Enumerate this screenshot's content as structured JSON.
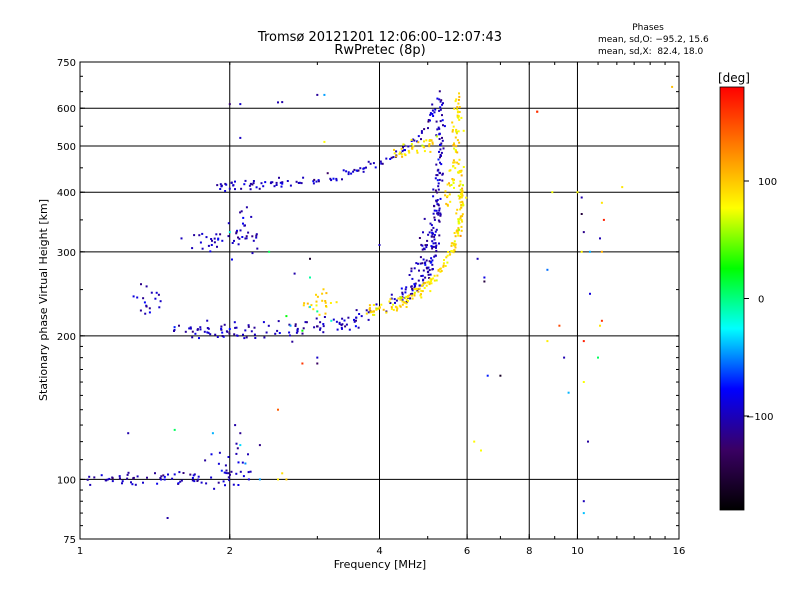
{
  "chart_data": {
    "type": "scatter",
    "title": "Tromsø 20121201 12:06:00–12:07:43",
    "subtitle": "RwPretec (8p)",
    "xlabel": "Frequency [MHz]",
    "ylabel": "Stationary phase Virtual Height [km]",
    "x_scale": "log",
    "y_scale": "log",
    "xlim": [
      1,
      16
    ],
    "ylim": [
      75,
      750
    ],
    "x_ticks": [
      1,
      2,
      4,
      6,
      8,
      10,
      16
    ],
    "y_ticks": [
      75,
      100,
      200,
      300,
      400,
      500,
      600,
      750
    ],
    "grid_x": [
      2,
      4,
      6,
      8,
      10
    ],
    "grid_y": [
      100,
      200,
      300,
      400,
      500,
      600
    ],
    "phase_stats": {
      "title": "Phases",
      "line_o": "mean, sd,O: −95.2, 15.6",
      "line_x": "mean, sd,X:  82.4, 18.0"
    },
    "colorbar": {
      "label": "[deg]",
      "range": [
        -180,
        180
      ],
      "ticks": [
        100,
        0,
        -100
      ],
      "colors": [
        "#ff0000",
        "#ff8000",
        "#ffff00",
        "#00ff00",
        "#00ffff",
        "#0000ff",
        "#3a0064",
        "#000000"
      ]
    },
    "series": [
      {
        "phase": -100,
        "traces": [
          {
            "kind": "curve",
            "points": [
              [
                1.0,
                100
              ],
              [
                1.3,
                100
              ],
              [
                1.6,
                101
              ],
              [
                1.8,
                100
              ],
              [
                2.0,
                100
              ],
              [
                2.2,
                101
              ]
            ],
            "n": 70,
            "spread": 0.018
          },
          {
            "kind": "curve",
            "points": [
              [
                1.55,
                205
              ],
              [
                1.8,
                205
              ],
              [
                2.1,
                203
              ],
              [
                2.5,
                205
              ],
              [
                3.0,
                210
              ],
              [
                3.5,
                215
              ],
              [
                4.0,
                228
              ],
              [
                4.5,
                242
              ],
              [
                4.9,
                262
              ],
              [
                5.1,
                290
              ],
              [
                5.2,
                330
              ],
              [
                5.25,
                400
              ],
              [
                5.3,
                500
              ],
              [
                5.3,
                580
              ],
              [
                5.3,
                640
              ]
            ],
            "n": 260,
            "spread": 0.02
          },
          {
            "kind": "curve",
            "points": [
              [
                1.9,
                410
              ],
              [
                2.3,
                414
              ],
              [
                2.8,
                420
              ],
              [
                3.3,
                432
              ],
              [
                3.9,
                458
              ],
              [
                4.4,
                485
              ],
              [
                4.8,
                525
              ],
              [
                5.1,
                580
              ],
              [
                5.25,
                630
              ]
            ],
            "n": 120,
            "spread": 0.013
          },
          {
            "kind": "curve",
            "points": [
              [
                1.7,
                320
              ],
              [
                1.9,
                318
              ],
              [
                2.1,
                320
              ],
              [
                2.3,
                322
              ]
            ],
            "n": 40,
            "spread": 0.03
          },
          {
            "kind": "curve",
            "points": [
              [
                4.5,
                245
              ],
              [
                4.8,
                275
              ],
              [
                5.0,
                310
              ],
              [
                5.1,
                350
              ],
              [
                5.2,
                400
              ]
            ],
            "n": 60,
            "spread": 0.03
          },
          {
            "kind": "curve",
            "points": [
              [
                1.3,
                230
              ],
              [
                1.4,
                235
              ],
              [
                1.45,
                245
              ]
            ],
            "n": 18,
            "spread": 0.05
          },
          {
            "kind": "curve",
            "points": [
              [
                1.85,
                102
              ],
              [
                2.0,
                106
              ],
              [
                2.1,
                110
              ]
            ],
            "n": 20,
            "spread": 0.05
          },
          {
            "kind": "curve",
            "points": [
              [
                2.05,
                335
              ],
              [
                2.1,
                340
              ]
            ],
            "n": 12,
            "spread": 0.06
          },
          {
            "kind": "points",
            "points": [
              [
                2.0,
                612
              ],
              [
                2.1,
                612
              ],
              [
                2.5,
                617
              ],
              [
                2.55,
                618
              ],
              [
                3.0,
                640
              ],
              [
                2.1,
                520
              ],
              [
                1.6,
                320
              ],
              [
                1.25,
                125
              ],
              [
                1.5,
                83
              ],
              [
                2.05,
                130
              ],
              [
                2.1,
                125
              ],
              [
                2.3,
                118
              ],
              [
                6.3,
                290
              ],
              [
                6.5,
                265
              ],
              [
                10.2,
                390
              ],
              [
                10.3,
                330
              ],
              [
                11.1,
                320
              ],
              [
                10.6,
                245
              ],
              [
                9.4,
                180
              ],
              [
                10.3,
                90
              ],
              [
                3.0,
                180
              ],
              [
                2.7,
                270
              ],
              [
                4.0,
                310
              ],
              [
                10.5,
                120
              ],
              [
                6.6,
                165
              ]
            ]
          }
        ]
      },
      {
        "phase": 90,
        "traces": [
          {
            "kind": "curve",
            "points": [
              [
                3.8,
                225
              ],
              [
                4.2,
                231
              ],
              [
                4.6,
                240
              ],
              [
                5.0,
                255
              ],
              [
                5.3,
                275
              ],
              [
                5.6,
                300
              ],
              [
                5.8,
                340
              ],
              [
                5.85,
                400
              ],
              [
                5.8,
                450
              ]
            ],
            "n": 190,
            "spread": 0.016
          },
          {
            "kind": "curve",
            "points": [
              [
                5.4,
                380
              ],
              [
                5.6,
                420
              ],
              [
                5.7,
                500
              ],
              [
                5.75,
                560
              ],
              [
                5.8,
                630
              ]
            ],
            "n": 70,
            "spread": 0.02
          },
          {
            "kind": "curve",
            "points": [
              [
                4.3,
                480
              ],
              [
                4.7,
                495
              ],
              [
                5.0,
                505
              ],
              [
                5.2,
                520
              ]
            ],
            "n": 40,
            "spread": 0.02
          },
          {
            "kind": "curve",
            "points": [
              [
                2.8,
                235
              ],
              [
                3.0,
                238
              ],
              [
                3.3,
                232
              ]
            ],
            "n": 22,
            "spread": 0.03
          },
          {
            "kind": "points",
            "points": [
              [
                2.5,
                100
              ],
              [
                2.55,
                103
              ],
              [
                3.1,
                510
              ],
              [
                8.9,
                400
              ],
              [
                10.0,
                400
              ],
              [
                11.2,
                380
              ],
              [
                10.2,
                300
              ],
              [
                11.2,
                300
              ],
              [
                12.3,
                410
              ],
              [
                15.5,
                665
              ],
              [
                6.2,
                120
              ],
              [
                6.4,
                115
              ],
              [
                8.7,
                195
              ],
              [
                10.3,
                160
              ],
              [
                11.1,
                210
              ],
              [
                2.6,
                100
              ],
              [
                5.6,
                560
              ],
              [
                2.5,
                75
              ]
            ]
          }
        ]
      },
      {
        "phase": 10,
        "traces": [
          {
            "kind": "points",
            "points": [
              [
                1.55,
                127
              ],
              [
                3.0,
                225
              ],
              [
                2.4,
                300
              ],
              [
                2.9,
                265
              ],
              [
                2.6,
                220
              ],
              [
                2.8,
                205
              ],
              [
                11.0,
                180
              ]
            ]
          }
        ]
      },
      {
        "phase": -40,
        "traces": [
          {
            "kind": "points",
            "points": [
              [
                3.1,
                640
              ],
              [
                2.15,
                108
              ],
              [
                2.3,
                100
              ],
              [
                2.1,
                118
              ],
              [
                1.85,
                125
              ],
              [
                8.7,
                275
              ],
              [
                9.6,
                152
              ],
              [
                10.6,
                300
              ],
              [
                10.3,
                85
              ],
              [
                3.2,
                215
              ],
              [
                2.9,
                230
              ],
              [
                2.65,
                210
              ],
              [
                2.0,
                330
              ]
            ]
          }
        ]
      },
      {
        "phase": 160,
        "traces": [
          {
            "kind": "points",
            "points": [
              [
                8.3,
                590
              ],
              [
                8.3,
                590
              ],
              [
                10.3,
                195
              ],
              [
                11.2,
                215
              ],
              [
                9.2,
                210
              ],
              [
                11.3,
                350
              ],
              [
                2.5,
                140
              ],
              [
                2.8,
                175
              ]
            ]
          }
        ]
      },
      {
        "phase": -150,
        "traces": [
          {
            "kind": "points",
            "points": [
              [
                2.9,
                290
              ],
              [
                3.0,
                175
              ],
              [
                7.0,
                165
              ],
              [
                10.2,
                360
              ],
              [
                6.5,
                260
              ]
            ]
          }
        ]
      }
    ]
  }
}
